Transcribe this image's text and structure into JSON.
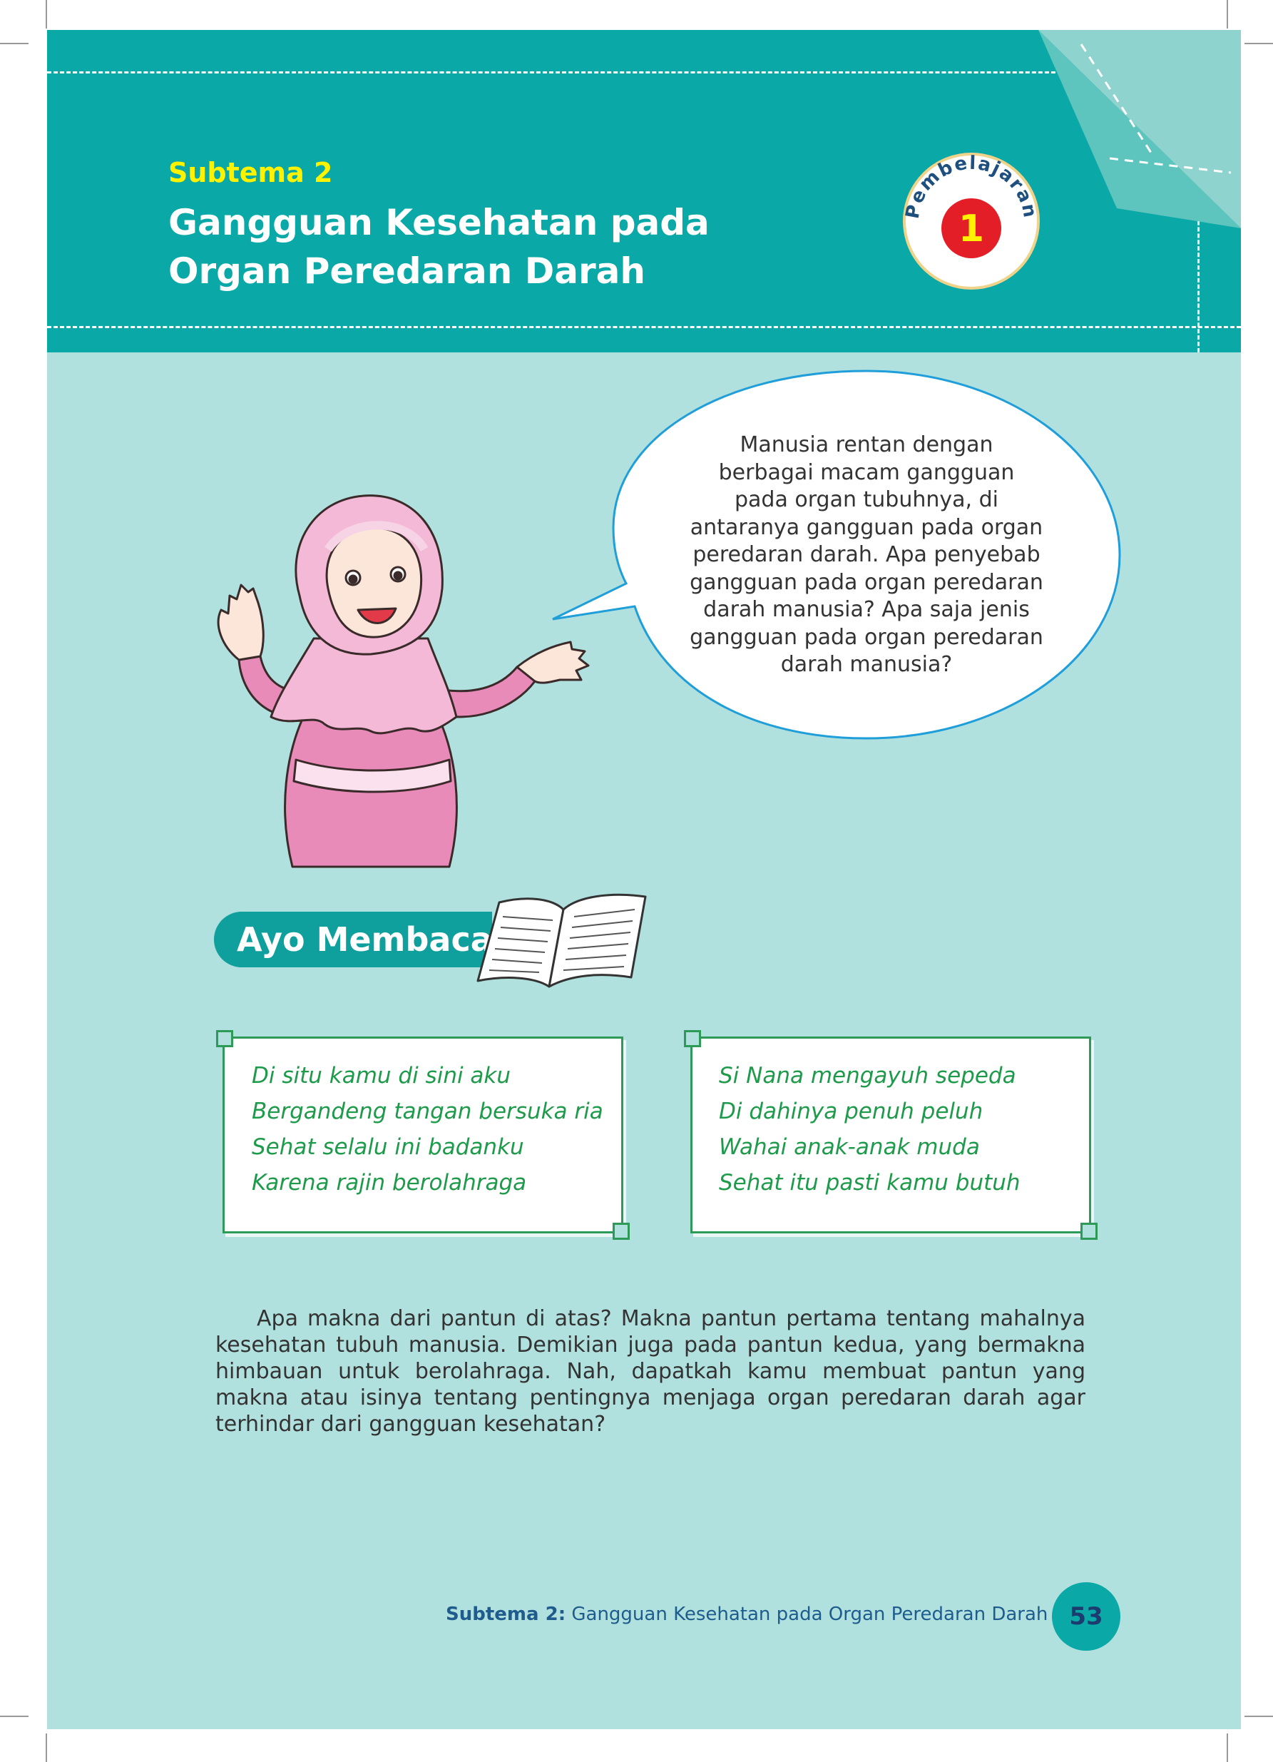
{
  "header": {
    "subtema_label": "Subtema 2",
    "title_line1": "Gangguan Kesehatan pada",
    "title_line2": "Organ Peredaran Darah",
    "badge_word": "Pembelajaran",
    "badge_number": "1"
  },
  "speech_bubble": {
    "lines": [
      "Manusia rentan dengan",
      "berbagai macam  gangguan",
      "pada organ tubuhnya, di",
      "antaranya gangguan pada organ",
      "peredaran darah. Apa penyebab",
      "gangguan pada organ peredaran",
      "darah manusia? Apa saja jenis",
      "gangguan pada organ peredaran",
      "darah manusia?"
    ]
  },
  "section": {
    "title": "Ayo Membaca"
  },
  "pantun": [
    {
      "lines": [
        "Di situ kamu di sini aku",
        "Bergandeng tangan bersuka ria",
        "Sehat selalu ini badanku",
        "Karena rajin berolahraga"
      ]
    },
    {
      "lines": [
        "Si Nana mengayuh sepeda",
        "Di dahinya penuh peluh",
        "Wahai anak-anak muda",
        "Sehat itu pasti kamu butuh"
      ]
    }
  ],
  "paragraph": "Apa makna dari pantun di atas? Makna pantun pertama tentang mahalnya kesehatan tubuh manusia. Demikian juga pada pantun kedua, yang bermakna himbauan untuk berolahraga. Nah, dapatkah kamu membuat pantun yang makna atau isinya tentang pentingnya menjaga organ peredaran darah agar terhindar dari gangguan kesehatan?",
  "footer": {
    "subtema_bold": "Subtema 2:",
    "subtema_text": " Gangguan Kesehatan pada Organ Peredaran Darah",
    "page_number": "53"
  },
  "colors": {
    "header_teal": "#0aa8a6",
    "page_bg": "#b1e1de",
    "subtema_yellow": "#fff200",
    "pantun_green": "#1d9a4a",
    "badge_red": "#e41e26",
    "footer_blue": "#1f5c8e"
  }
}
